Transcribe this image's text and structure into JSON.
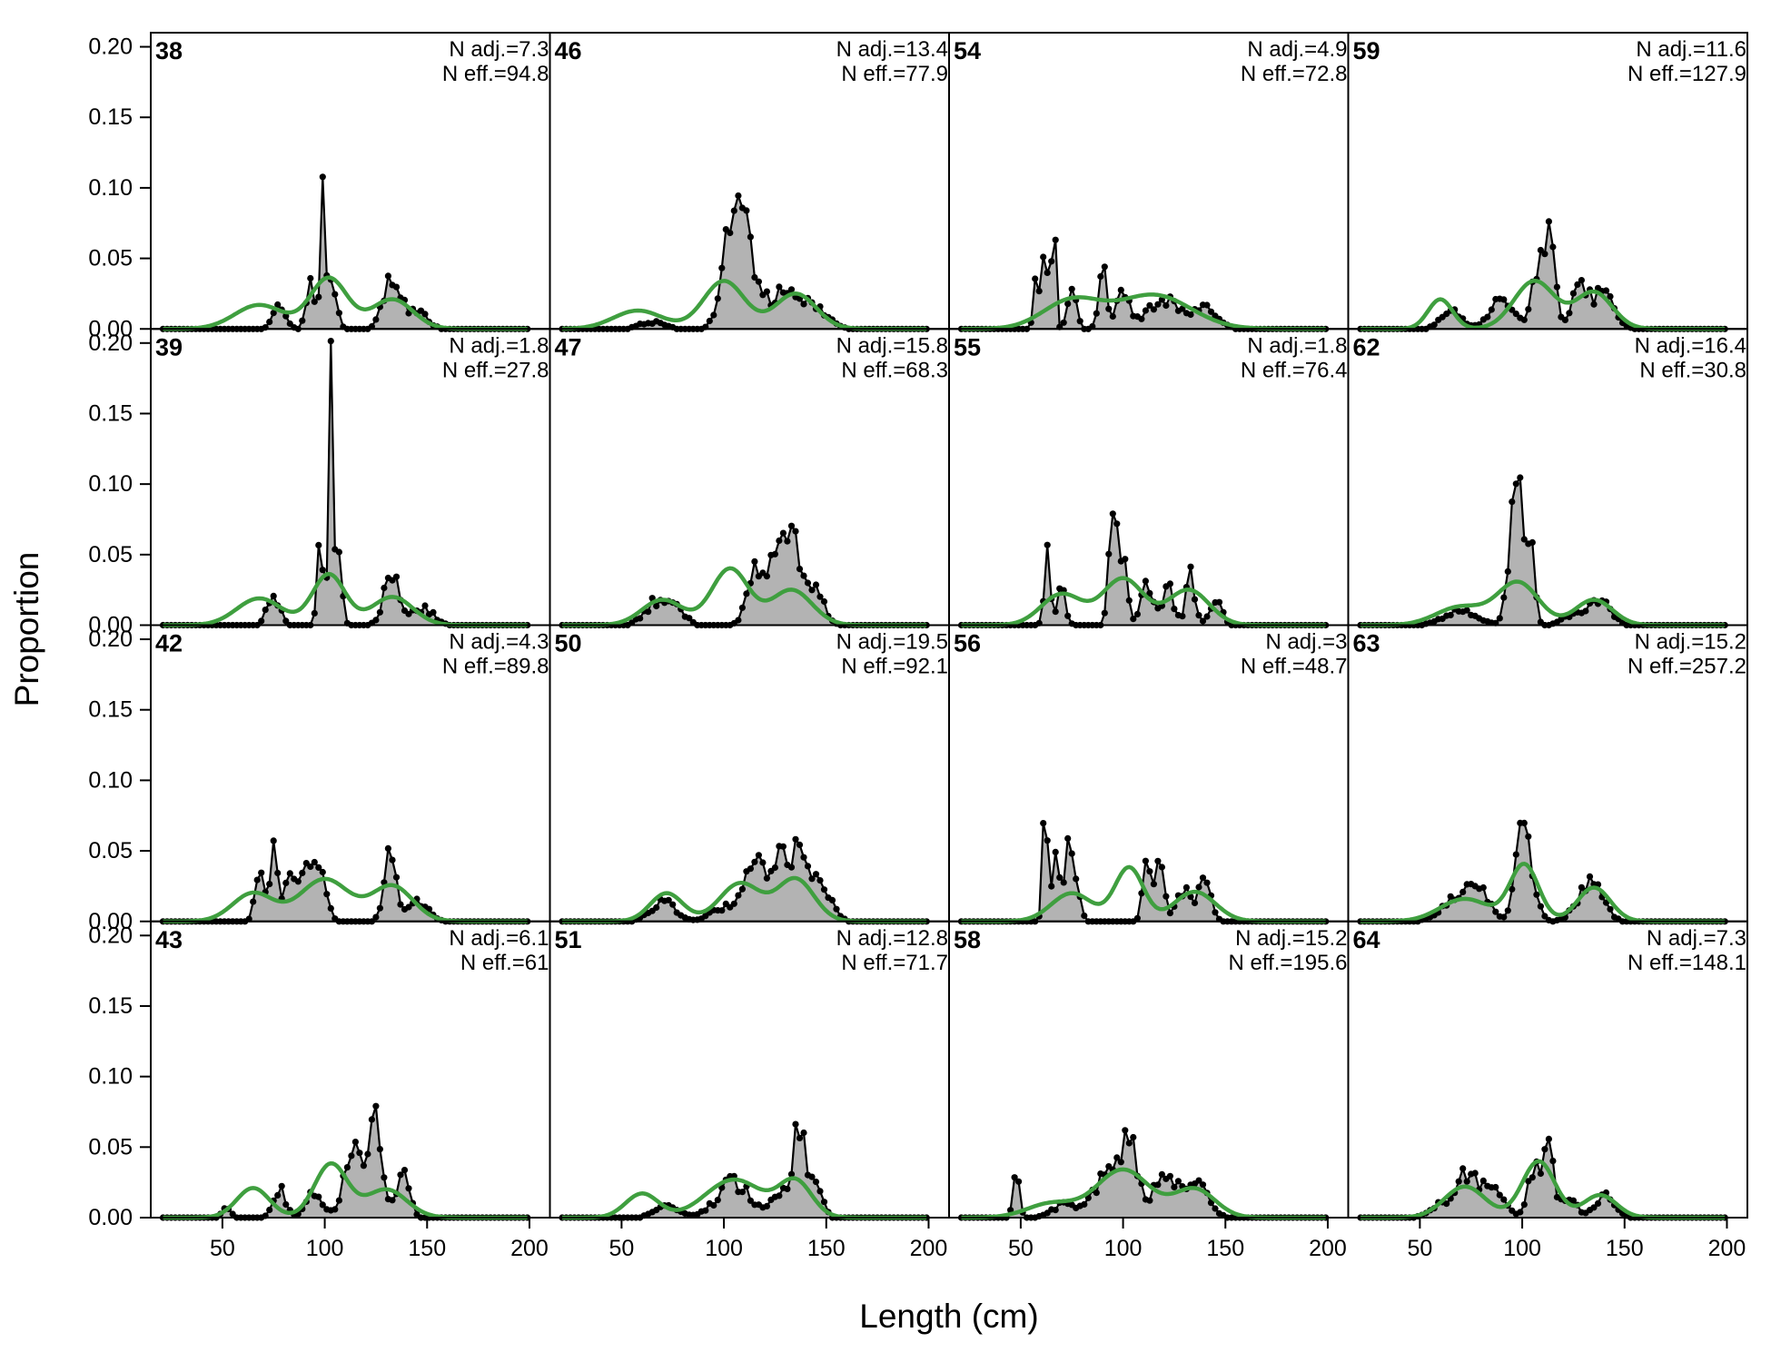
{
  "chart_data": {
    "type": "area",
    "xlabel": "Length (cm)",
    "ylabel": "Proportion",
    "xlim": [
      15,
      210
    ],
    "ylim": [
      0,
      0.21
    ],
    "xticks": [
      50,
      100,
      150,
      200
    ],
    "xtick_labels": [
      "50",
      "100",
      "150",
      "200"
    ],
    "yticks": [
      0,
      0.05,
      0.1,
      0.15,
      0.2
    ],
    "ytick_labels": [
      "0.00",
      "0.05",
      "0.10",
      "0.15",
      "0.20"
    ],
    "layout": {
      "rows": 4,
      "cols": 4,
      "order": "column-major"
    },
    "colors": {
      "observed_fill": "#b3b3b3",
      "observed_line": "#000000",
      "expected_line": "#3f9f3f",
      "zero_line": "#bdbdbd"
    },
    "series_legend": [
      "observed (points, grey fill)",
      "expected (green line)"
    ],
    "panels": [
      {
        "id": "38",
        "n_adj": "N adj.=7.3",
        "n_eff": "N eff.=94.8",
        "obs_peaks": [
          [
            78,
            0.016,
            3
          ],
          [
            93,
            0.04,
            2
          ],
          [
            99,
            0.095,
            1.2
          ],
          [
            104,
            0.035,
            2
          ],
          [
            133,
            0.04,
            4
          ],
          [
            145,
            0.012,
            5
          ]
        ],
        "exp_peaks": [
          [
            68,
            0.017,
            12
          ],
          [
            102,
            0.036,
            9
          ],
          [
            133,
            0.021,
            10
          ]
        ]
      },
      {
        "id": "39",
        "n_adj": "N adj.=1.8",
        "n_eff": "N eff.=27.8",
        "obs_peaks": [
          [
            75,
            0.022,
            3
          ],
          [
            98,
            0.065,
            1.5
          ],
          [
            103,
            0.18,
            1.0
          ],
          [
            107,
            0.05,
            1.5
          ],
          [
            133,
            0.035,
            4
          ],
          [
            148,
            0.012,
            5
          ]
        ],
        "exp_peaks": [
          [
            68,
            0.019,
            11
          ],
          [
            102,
            0.036,
            8
          ],
          [
            133,
            0.02,
            10
          ]
        ]
      },
      {
        "id": "42",
        "n_adj": "N adj.=4.3",
        "n_eff": "N eff.=89.8",
        "obs_peaks": [
          [
            68,
            0.04,
            2
          ],
          [
            75,
            0.05,
            2
          ],
          [
            83,
            0.035,
            3
          ],
          [
            92,
            0.04,
            3
          ],
          [
            98,
            0.03,
            3
          ],
          [
            132,
            0.045,
            3
          ],
          [
            145,
            0.015,
            5
          ]
        ],
        "exp_peaks": [
          [
            65,
            0.02,
            10
          ],
          [
            100,
            0.03,
            12
          ],
          [
            133,
            0.025,
            10
          ]
        ]
      },
      {
        "id": "43",
        "n_adj": "N adj.=6.1",
        "n_eff": "N eff.=61",
        "obs_peaks": [
          [
            52,
            0.008,
            2
          ],
          [
            78,
            0.02,
            3
          ],
          [
            95,
            0.018,
            4
          ],
          [
            115,
            0.05,
            5
          ],
          [
            125,
            0.06,
            3
          ],
          [
            138,
            0.035,
            3
          ]
        ],
        "exp_peaks": [
          [
            65,
            0.021,
            8
          ],
          [
            103,
            0.038,
            8
          ],
          [
            130,
            0.02,
            10
          ]
        ]
      },
      {
        "id": "46",
        "n_adj": "N adj.=13.4",
        "n_eff": "N eff.=77.9",
        "obs_peaks": [
          [
            65,
            0.005,
            6
          ],
          [
            102,
            0.06,
            4
          ],
          [
            108,
            0.068,
            3
          ],
          [
            115,
            0.04,
            4
          ],
          [
            130,
            0.03,
            6
          ],
          [
            145,
            0.015,
            6
          ]
        ],
        "exp_peaks": [
          [
            58,
            0.013,
            12
          ],
          [
            100,
            0.034,
            10
          ],
          [
            135,
            0.025,
            10
          ]
        ]
      },
      {
        "id": "47",
        "n_adj": "N adj.=15.8",
        "n_eff": "N eff.=68.3",
        "obs_peaks": [
          [
            68,
            0.018,
            6
          ],
          [
            78,
            0.008,
            4
          ],
          [
            115,
            0.03,
            4
          ],
          [
            125,
            0.05,
            5
          ],
          [
            135,
            0.05,
            4
          ],
          [
            145,
            0.025,
            4
          ]
        ],
        "exp_peaks": [
          [
            70,
            0.018,
            10
          ],
          [
            103,
            0.04,
            9
          ],
          [
            133,
            0.025,
            10
          ]
        ]
      },
      {
        "id": "50",
        "n_adj": "N adj.=19.5",
        "n_eff": "N eff.=92.1",
        "obs_peaks": [
          [
            70,
            0.014,
            6
          ],
          [
            100,
            0.01,
            6
          ],
          [
            115,
            0.04,
            5
          ],
          [
            128,
            0.055,
            4
          ],
          [
            138,
            0.05,
            4
          ],
          [
            148,
            0.02,
            5
          ]
        ],
        "exp_peaks": [
          [
            72,
            0.02,
            8
          ],
          [
            108,
            0.027,
            10
          ],
          [
            135,
            0.03,
            9
          ]
        ]
      },
      {
        "id": "51",
        "n_adj": "N adj.=12.8",
        "n_eff": "N eff.=71.7",
        "obs_peaks": [
          [
            72,
            0.008,
            6
          ],
          [
            105,
            0.025,
            8
          ],
          [
            128,
            0.02,
            4
          ],
          [
            137,
            0.07,
            2.5
          ],
          [
            145,
            0.025,
            3
          ]
        ],
        "exp_peaks": [
          [
            60,
            0.017,
            8
          ],
          [
            105,
            0.027,
            14
          ],
          [
            135,
            0.025,
            8
          ]
        ]
      },
      {
        "id": "54",
        "n_adj": "N adj.=4.9",
        "n_eff": "N eff.=72.8",
        "obs_peaks": [
          [
            58,
            0.04,
            1.5
          ],
          [
            62,
            0.06,
            1.2
          ],
          [
            66,
            0.088,
            1.0
          ],
          [
            75,
            0.035,
            2
          ],
          [
            90,
            0.04,
            2
          ],
          [
            100,
            0.028,
            3
          ],
          [
            120,
            0.02,
            8
          ],
          [
            140,
            0.015,
            6
          ]
        ],
        "exp_peaks": [
          [
            75,
            0.02,
            14
          ],
          [
            115,
            0.024,
            18
          ]
        ]
      },
      {
        "id": "55",
        "n_adj": "N adj.=1.8",
        "n_eff": "N eff.=76.4",
        "obs_peaks": [
          [
            63,
            0.05,
            1.5
          ],
          [
            70,
            0.025,
            2
          ],
          [
            95,
            0.07,
            2
          ],
          [
            100,
            0.05,
            2
          ],
          [
            112,
            0.03,
            3
          ],
          [
            122,
            0.025,
            3
          ],
          [
            133,
            0.04,
            2
          ],
          [
            145,
            0.018,
            3
          ]
        ],
        "exp_peaks": [
          [
            70,
            0.022,
            10
          ],
          [
            100,
            0.033,
            10
          ],
          [
            132,
            0.025,
            10
          ]
        ]
      },
      {
        "id": "56",
        "n_adj": "N adj.=3",
        "n_eff": "N eff.=48.7",
        "obs_peaks": [
          [
            62,
            0.08,
            1.2
          ],
          [
            67,
            0.06,
            1.5
          ],
          [
            73,
            0.055,
            1.5
          ],
          [
            77,
            0.03,
            2
          ],
          [
            112,
            0.05,
            2
          ],
          [
            118,
            0.045,
            2
          ],
          [
            130,
            0.02,
            4
          ],
          [
            140,
            0.025,
            3
          ]
        ],
        "exp_peaks": [
          [
            75,
            0.02,
            10
          ],
          [
            103,
            0.038,
            7
          ],
          [
            135,
            0.021,
            10
          ]
        ]
      },
      {
        "id": "58",
        "n_adj": "N adj.=15.2",
        "n_eff": "N eff.=195.6",
        "obs_peaks": [
          [
            48,
            0.032,
            1.5
          ],
          [
            72,
            0.01,
            6
          ],
          [
            92,
            0.03,
            6
          ],
          [
            103,
            0.055,
            4
          ],
          [
            120,
            0.03,
            5
          ],
          [
            135,
            0.025,
            6
          ]
        ],
        "exp_peaks": [
          [
            65,
            0.01,
            12
          ],
          [
            100,
            0.034,
            13
          ],
          [
            135,
            0.02,
            10
          ]
        ]
      },
      {
        "id": "59",
        "n_adj": "N adj.=11.6",
        "n_eff": "N eff.=127.9",
        "obs_peaks": [
          [
            65,
            0.012,
            5
          ],
          [
            90,
            0.02,
            6
          ],
          [
            108,
            0.045,
            3
          ],
          [
            114,
            0.055,
            2.5
          ],
          [
            128,
            0.03,
            4
          ],
          [
            140,
            0.025,
            5
          ]
        ],
        "exp_peaks": [
          [
            60,
            0.021,
            6
          ],
          [
            106,
            0.034,
            10
          ],
          [
            135,
            0.026,
            9
          ]
        ]
      },
      {
        "id": "62",
        "n_adj": "N adj.=16.4",
        "n_eff": "N eff.=30.8",
        "obs_peaks": [
          [
            70,
            0.01,
            8
          ],
          [
            97,
            0.12,
            3
          ],
          [
            104,
            0.05,
            2
          ],
          [
            125,
            0.008,
            5
          ],
          [
            138,
            0.018,
            5
          ]
        ],
        "exp_peaks": [
          [
            70,
            0.013,
            12
          ],
          [
            98,
            0.03,
            10
          ],
          [
            135,
            0.018,
            9
          ]
        ]
      },
      {
        "id": "63",
        "n_adj": "N adj.=15.2",
        "n_eff": "N eff.=257.2",
        "obs_peaks": [
          [
            70,
            0.02,
            8
          ],
          [
            80,
            0.015,
            4
          ],
          [
            101,
            0.068,
            4
          ],
          [
            133,
            0.028,
            6
          ]
        ],
        "exp_peaks": [
          [
            72,
            0.016,
            12
          ],
          [
            101,
            0.04,
            7
          ],
          [
            135,
            0.024,
            8
          ]
        ]
      },
      {
        "id": "64",
        "n_adj": "N adj.=7.3",
        "n_eff": "N eff.=148.1",
        "obs_peaks": [
          [
            62,
            0.01,
            6
          ],
          [
            72,
            0.03,
            4
          ],
          [
            82,
            0.025,
            4
          ],
          [
            90,
            0.01,
            4
          ],
          [
            106,
            0.035,
            3
          ],
          [
            113,
            0.055,
            2
          ],
          [
            122,
            0.015,
            4
          ],
          [
            140,
            0.015,
            5
          ]
        ],
        "exp_peaks": [
          [
            72,
            0.022,
            10
          ],
          [
            108,
            0.04,
            8
          ],
          [
            138,
            0.016,
            8
          ]
        ]
      }
    ]
  }
}
